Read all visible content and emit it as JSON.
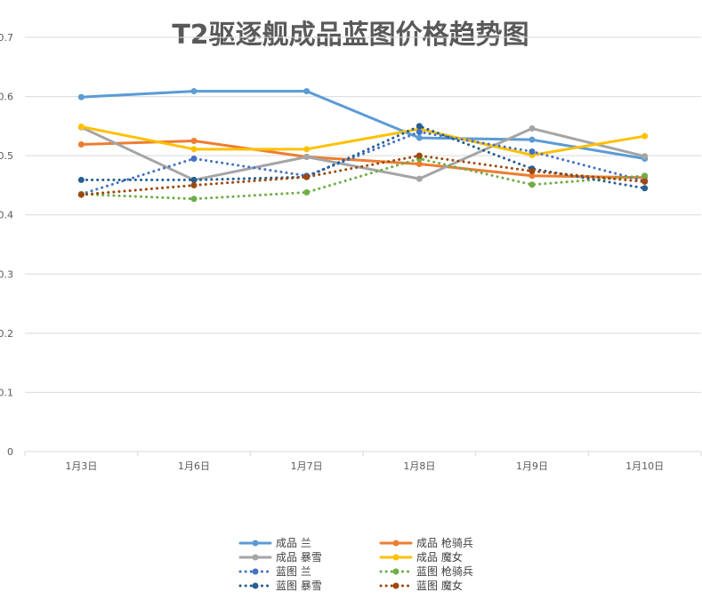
{
  "chart_data": {
    "type": "line",
    "title": "T2驱逐舰成品蓝图价格趋势图",
    "xlabel": "",
    "ylabel": "",
    "categories": [
      "1月3日",
      "1月6日",
      "1月7日",
      "1月8日",
      "1月9日",
      "1月10日"
    ],
    "ylim": [
      0,
      0.7
    ],
    "yticks": [
      "0",
      "0.1",
      "0.2",
      "0.3",
      "0.4",
      "0.5",
      "0.6",
      "0.7"
    ],
    "grid": true,
    "legend_position": "bottom",
    "series": [
      {
        "name": "成品 兰",
        "style": "solid",
        "color": "#5B9BD5",
        "values": [
          0.599,
          0.609,
          0.609,
          0.53,
          0.527,
          0.495
        ]
      },
      {
        "name": "成品 枪骑兵",
        "style": "solid",
        "color": "#ED7D31",
        "values": [
          0.519,
          0.525,
          0.498,
          0.486,
          0.466,
          0.463
        ]
      },
      {
        "name": "成品 暴雪",
        "style": "solid",
        "color": "#A5A5A5",
        "values": [
          0.548,
          0.459,
          0.498,
          0.461,
          0.546,
          0.499
        ]
      },
      {
        "name": "成品 魔女",
        "style": "solid",
        "color": "#FFC000",
        "values": [
          0.549,
          0.511,
          0.511,
          0.545,
          0.501,
          0.533
        ]
      },
      {
        "name": "蓝图 兰",
        "style": "dotted",
        "color": "#4472C4",
        "values": [
          0.435,
          0.495,
          0.466,
          0.54,
          0.507,
          0.457
        ]
      },
      {
        "name": "蓝图 枪骑兵",
        "style": "dotted",
        "color": "#70AD47",
        "values": [
          0.435,
          0.427,
          0.438,
          0.495,
          0.451,
          0.466
        ]
      },
      {
        "name": "蓝图 暴雪",
        "style": "dotted",
        "color": "#255E91",
        "values": [
          0.459,
          0.459,
          0.464,
          0.55,
          0.478,
          0.445
        ]
      },
      {
        "name": "蓝图 魔女",
        "style": "dotted",
        "color": "#9E480E",
        "values": [
          0.434,
          0.45,
          0.464,
          0.5,
          0.474,
          0.456
        ]
      }
    ]
  }
}
